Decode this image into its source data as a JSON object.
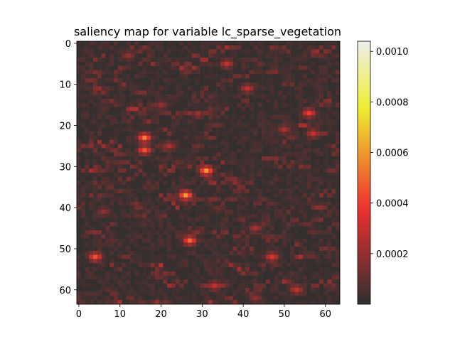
{
  "chart_data": {
    "type": "heatmap",
    "title": "saliency map for variable lc_sparse_vegetation",
    "xlabel": "",
    "ylabel": "",
    "grid_size": [
      64,
      64
    ],
    "xlim": [
      -0.5,
      63.5
    ],
    "ylim": [
      63.5,
      -0.5
    ],
    "x_ticks": [
      0,
      10,
      20,
      30,
      40,
      50,
      60
    ],
    "y_ticks": [
      0,
      10,
      20,
      30,
      40,
      50,
      60
    ],
    "colormap": "hot (alpha-blended over gray)",
    "colorbar": {
      "range": [
        0.0,
        0.00104
      ],
      "ticks": [
        0.0002,
        0.0004,
        0.0006,
        0.0008,
        0.001
      ],
      "tick_labels": [
        "0.0002",
        "0.0004",
        "0.0006",
        "0.0008",
        "0.0010"
      ]
    },
    "noise_seed": 7,
    "background_level": 3e-05,
    "hotspots": [
      {
        "x": 16,
        "y": 23,
        "value": 0.00055
      },
      {
        "x": 16,
        "y": 26,
        "value": 0.00045
      },
      {
        "x": 31,
        "y": 31,
        "value": 0.0006
      },
      {
        "x": 26,
        "y": 37,
        "value": 0.0006
      },
      {
        "x": 27,
        "y": 48,
        "value": 0.0005
      },
      {
        "x": 4,
        "y": 52,
        "value": 0.00045
      },
      {
        "x": 56,
        "y": 17,
        "value": 0.0004
      },
      {
        "x": 47,
        "y": 52,
        "value": 0.00035
      },
      {
        "x": 36,
        "y": 5,
        "value": 0.0003
      },
      {
        "x": 41,
        "y": 11,
        "value": 0.0003
      },
      {
        "x": 33,
        "y": 59,
        "value": 0.0003
      },
      {
        "x": 53,
        "y": 60,
        "value": 0.0003
      },
      {
        "x": 57,
        "y": 22,
        "value": 0.0003
      },
      {
        "x": 22,
        "y": 25,
        "value": 0.00025
      },
      {
        "x": 50,
        "y": 21,
        "value": 0.00025
      },
      {
        "x": 43,
        "y": 45,
        "value": 0.00025
      },
      {
        "x": 6,
        "y": 41,
        "value": 0.0002
      },
      {
        "x": 12,
        "y": 3,
        "value": 0.0002
      },
      {
        "x": 43,
        "y": 62,
        "value": 0.0002
      },
      {
        "x": 20,
        "y": 15,
        "value": 0.0002
      }
    ]
  }
}
